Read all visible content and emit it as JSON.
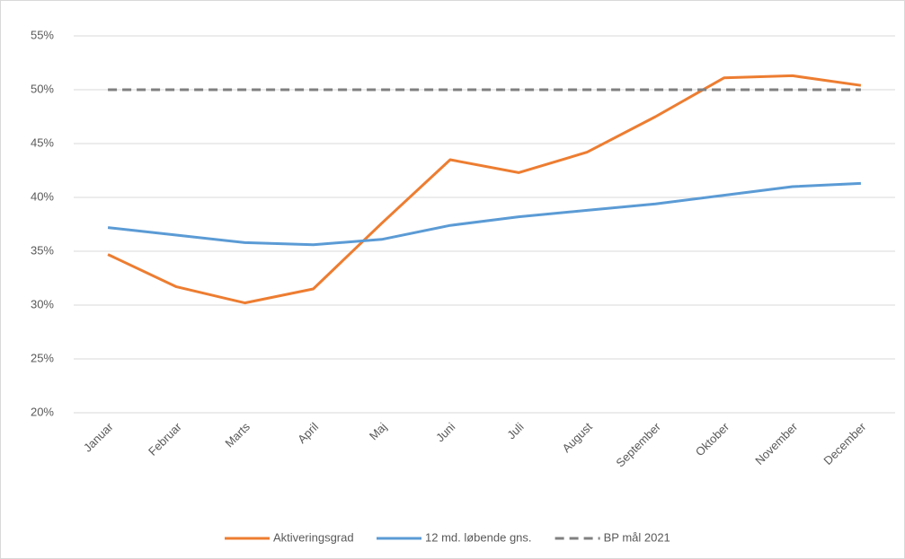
{
  "chart_data": {
    "type": "line",
    "categories": [
      "Januar",
      "Februar",
      "Marts",
      "April",
      "Maj",
      "Juni",
      "Juli",
      "August",
      "September",
      "Oktober",
      "November",
      "December"
    ],
    "series": [
      {
        "name": "Aktiveringsgrad",
        "color": "#ed7d31",
        "values": [
          34.7,
          31.7,
          30.2,
          31.5,
          37.6,
          43.5,
          42.3,
          44.2,
          47.5,
          51.1,
          51.3,
          50.4
        ]
      },
      {
        "name": "12 md. løbende gns.",
        "color": "#5b9bd5",
        "values": [
          37.2,
          36.5,
          35.8,
          35.6,
          36.1,
          37.4,
          38.2,
          38.8,
          39.4,
          40.2,
          41.0,
          41.3
        ]
      },
      {
        "name": "BP mål 2021",
        "color": "#808080",
        "dashed": true,
        "values": [
          50,
          50,
          50,
          50,
          50,
          50,
          50,
          50,
          50,
          50,
          50,
          50
        ]
      }
    ],
    "ylim": [
      20,
      55
    ],
    "yticks": [
      {
        "value": 20,
        "label": "20%"
      },
      {
        "value": 25,
        "label": "25%"
      },
      {
        "value": 30,
        "label": "30%"
      },
      {
        "value": 35,
        "label": "35%"
      },
      {
        "value": 40,
        "label": "40%"
      },
      {
        "value": 45,
        "label": "45%"
      },
      {
        "value": 50,
        "label": "50%"
      },
      {
        "value": 55,
        "label": "55%"
      }
    ],
    "grid": true,
    "legend": "bottom"
  }
}
